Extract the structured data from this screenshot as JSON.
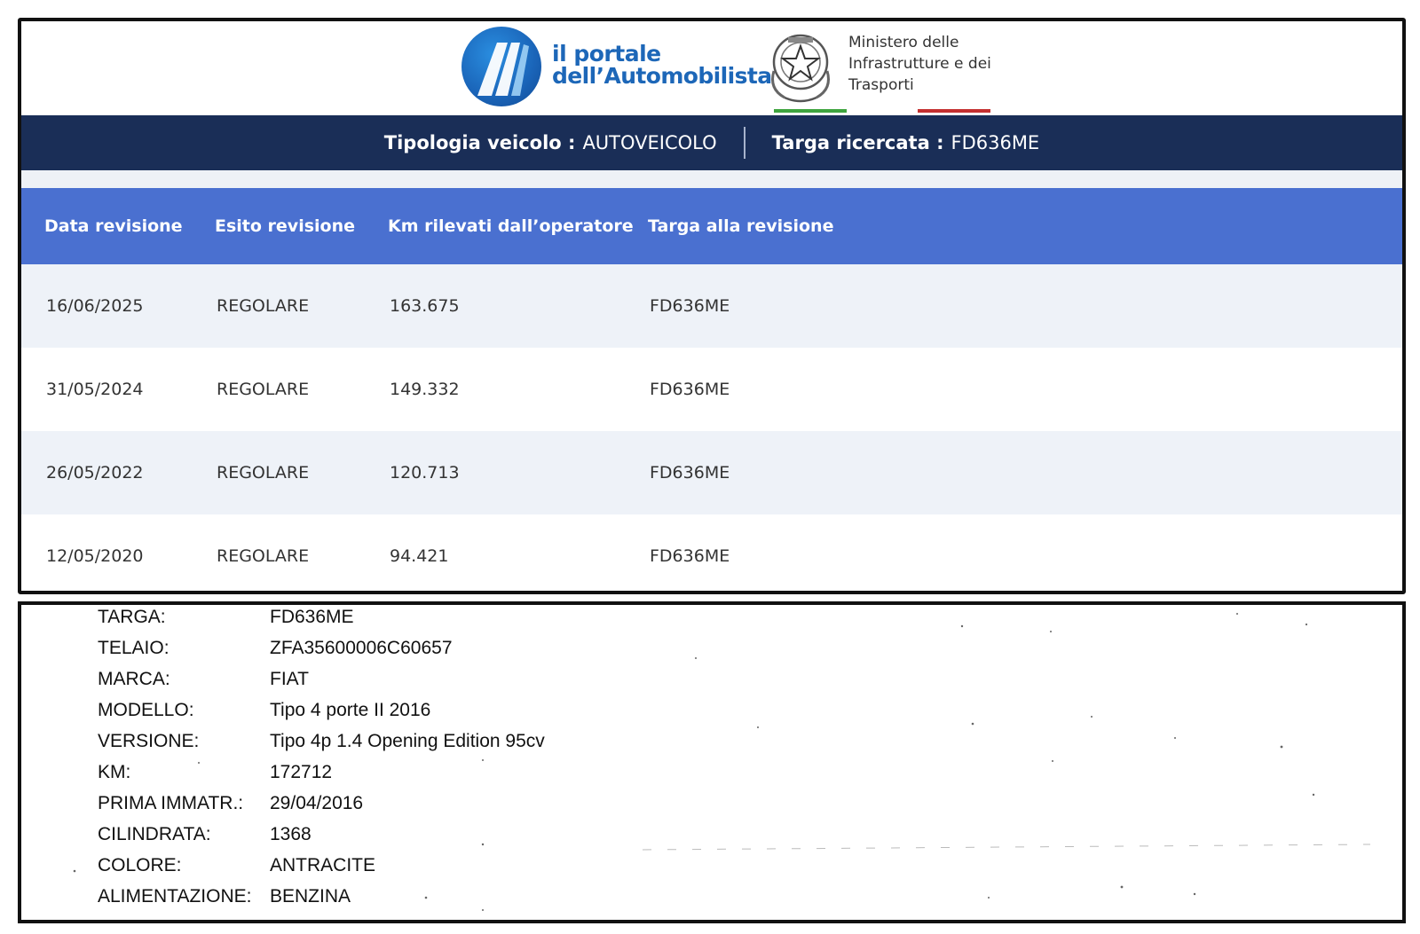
{
  "header": {
    "portal_line1": "il portale",
    "portal_line2": "dell’Automobilista",
    "ministry_line1": "Ministero delle",
    "ministry_line2": "Infrastrutture e dei",
    "ministry_line3": "Trasporti",
    "accent_blue": "#1d67b8",
    "flag_green": "#3ea43e",
    "flag_red": "#c43030"
  },
  "info_bar": {
    "type_label": "Tipologia veicolo :",
    "type_value": "AUTOVEICOLO",
    "plate_label": "Targa ricercata :",
    "plate_value": "FD636ME",
    "bg_color": "#1a2e57"
  },
  "table": {
    "header_color": "#4a70d0",
    "columns": [
      "Data revisione",
      "Esito revisione",
      "Km rilevati dall’operatore",
      "Targa alla revisione"
    ],
    "rows": [
      [
        "16/06/2025",
        "REGOLARE",
        "163.675",
        "FD636ME"
      ],
      [
        "31/05/2024",
        "REGOLARE",
        "149.332",
        "FD636ME"
      ],
      [
        "26/05/2022",
        "REGOLARE",
        "120.713",
        "FD636ME"
      ],
      [
        "12/05/2020",
        "REGOLARE",
        "94.421",
        "FD636ME"
      ]
    ]
  },
  "vehicle": {
    "fields": [
      {
        "key": "TARGA:",
        "value": "FD636ME"
      },
      {
        "key": "TELAIO:",
        "value": "ZFA35600006C60657"
      },
      {
        "key": "MARCA:",
        "value": "FIAT"
      },
      {
        "key": "MODELLO:",
        "value": "Tipo 4 porte II 2016"
      },
      {
        "key": "VERSIONE:",
        "value": "Tipo 4p 1.4 Opening Edition 95cv"
      },
      {
        "key": "KM:",
        "value": "172712"
      },
      {
        "key": "PRIMA IMMATR.:",
        "value": "29/04/2016"
      },
      {
        "key": "CILINDRATA:",
        "value": "1368"
      },
      {
        "key": "COLORE:",
        "value": "ANTRACITE"
      },
      {
        "key": "ALIMENTAZIONE:",
        "value": "BENZINA"
      }
    ]
  }
}
